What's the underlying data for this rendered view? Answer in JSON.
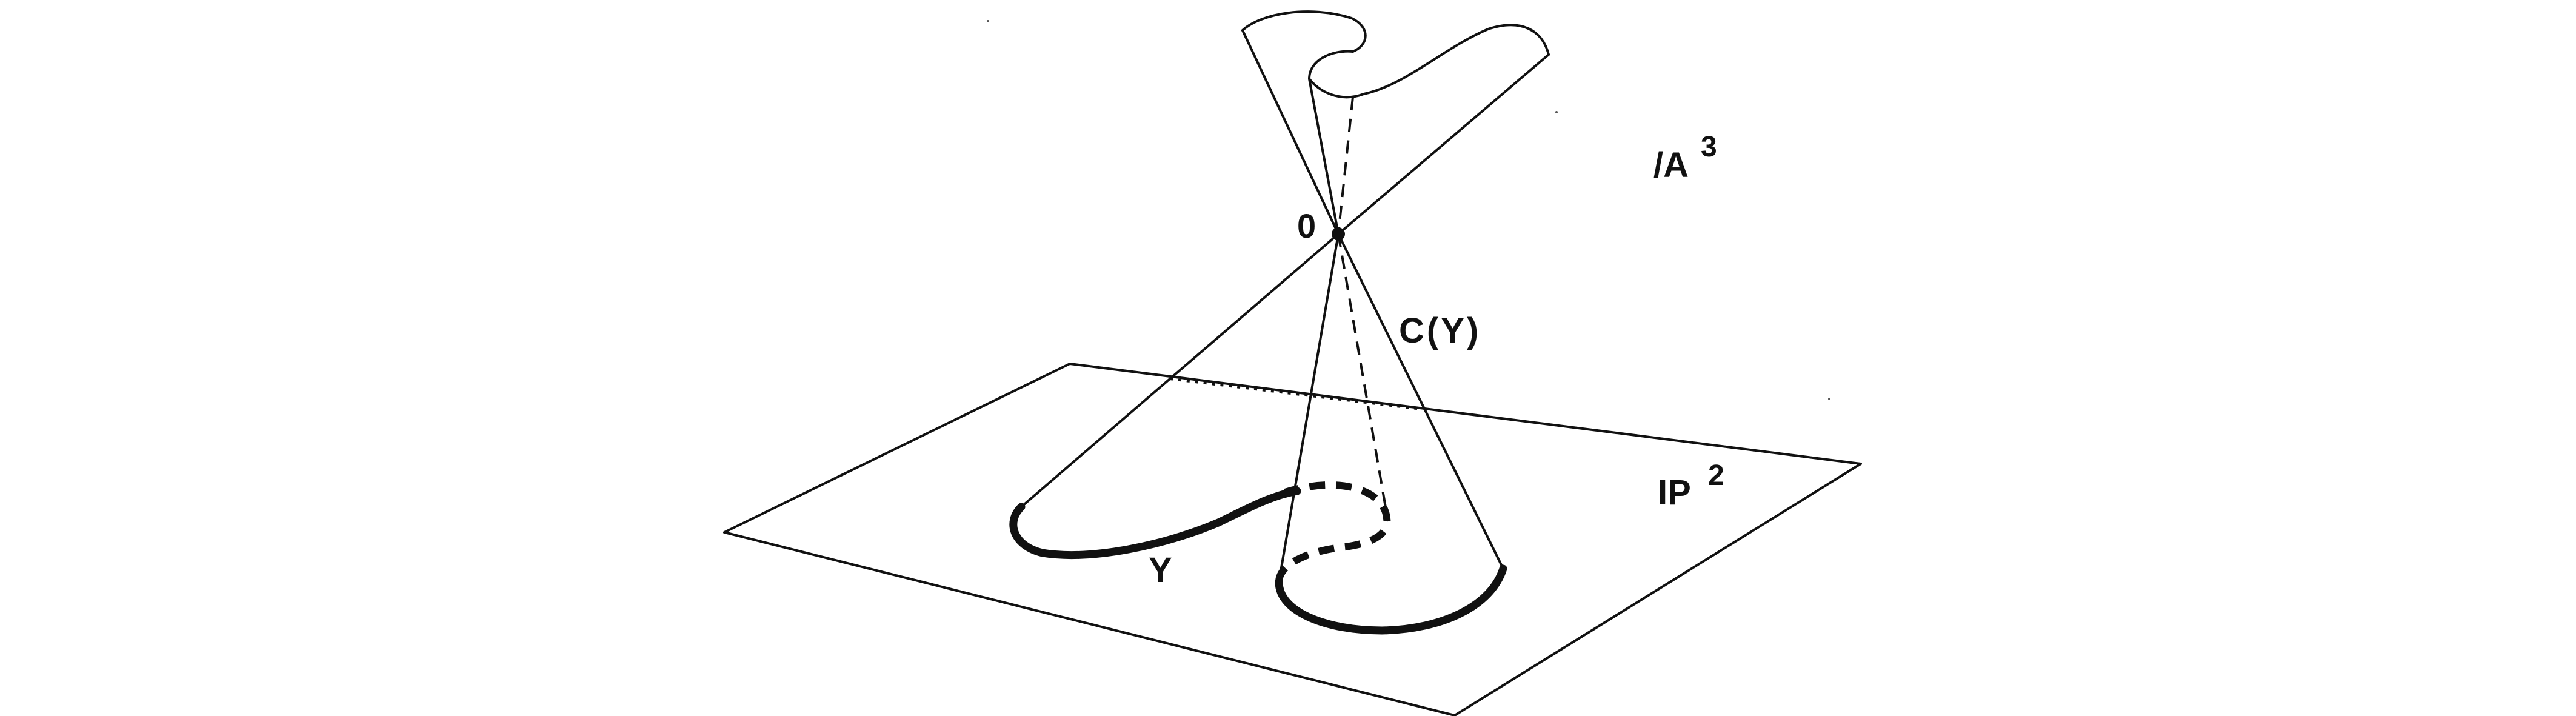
{
  "labels": {
    "affine_space": "/A",
    "affine_space_exp": "3",
    "projective_plane": "IP",
    "projective_plane_exp": "2",
    "origin": "0",
    "cone": "C(Y)",
    "curve": "Y"
  },
  "colors": {
    "ink": "#111111",
    "background": "#ffffff"
  }
}
